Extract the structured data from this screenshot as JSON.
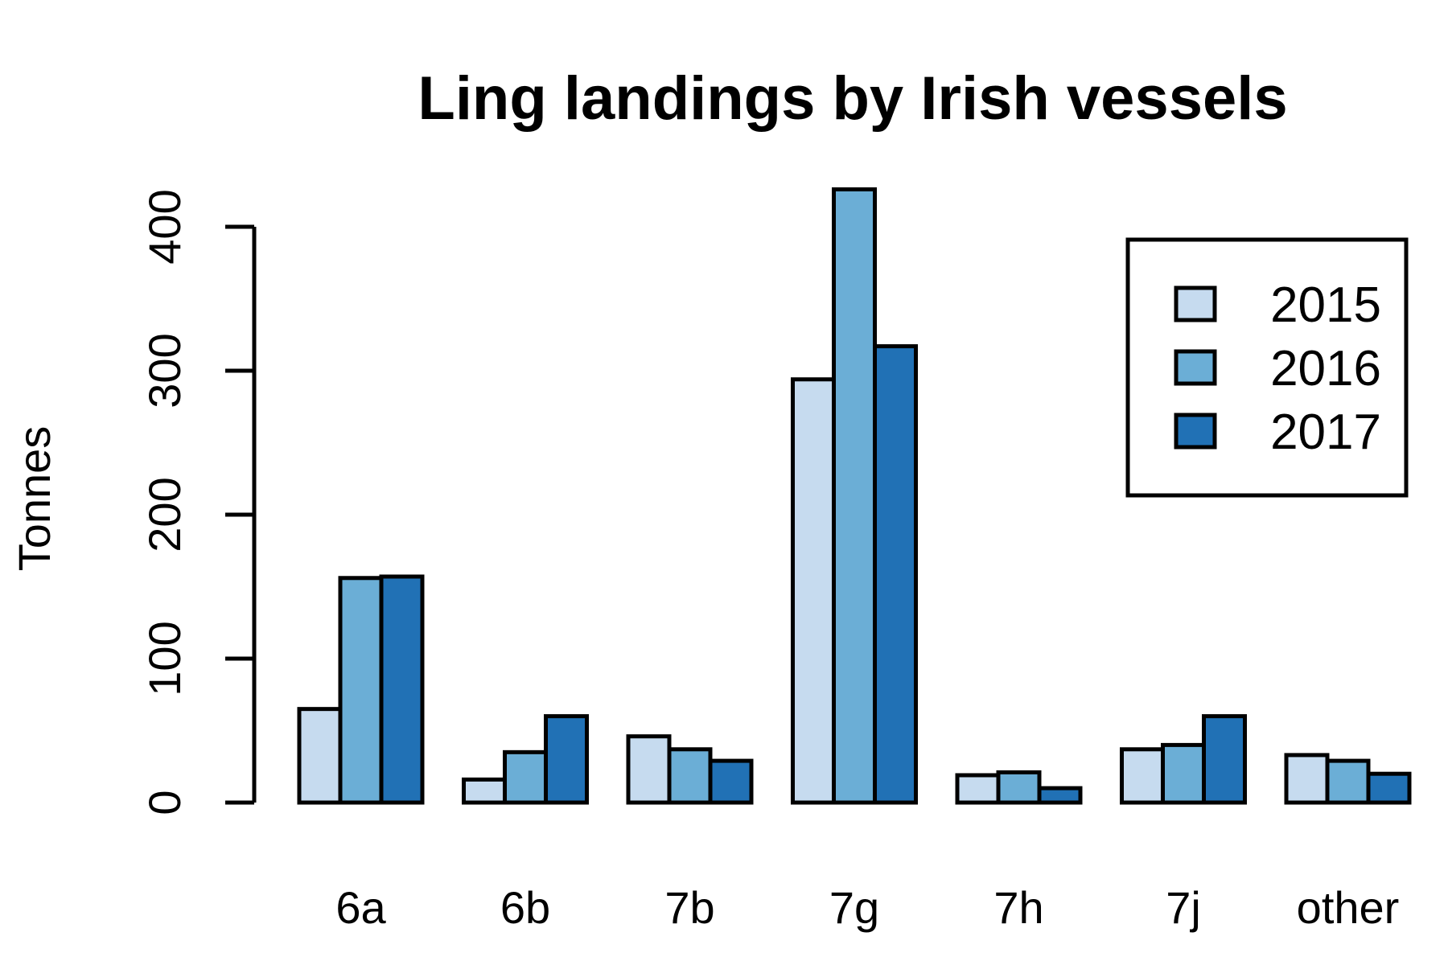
{
  "chart_data": {
    "type": "bar",
    "title": "Ling landings by Irish vessels",
    "xlabel": "",
    "ylabel": "Tonnes",
    "categories": [
      "6a",
      "6b",
      "7b",
      "7g",
      "7h",
      "7j",
      "other"
    ],
    "series": [
      {
        "name": "2015",
        "color": "#c6dbef",
        "values": [
          65,
          16,
          46,
          294,
          19,
          37,
          33
        ]
      },
      {
        "name": "2016",
        "color": "#6baed6",
        "values": [
          156,
          35,
          37,
          426,
          21,
          40,
          29
        ]
      },
      {
        "name": "2017",
        "color": "#2171b5",
        "values": [
          157,
          60,
          29,
          317,
          10,
          60,
          20
        ]
      }
    ],
    "ylim": [
      0,
      400
    ],
    "yticks": [
      0,
      100,
      200,
      300,
      400
    ],
    "grid": false,
    "legend_position": "top-right"
  }
}
